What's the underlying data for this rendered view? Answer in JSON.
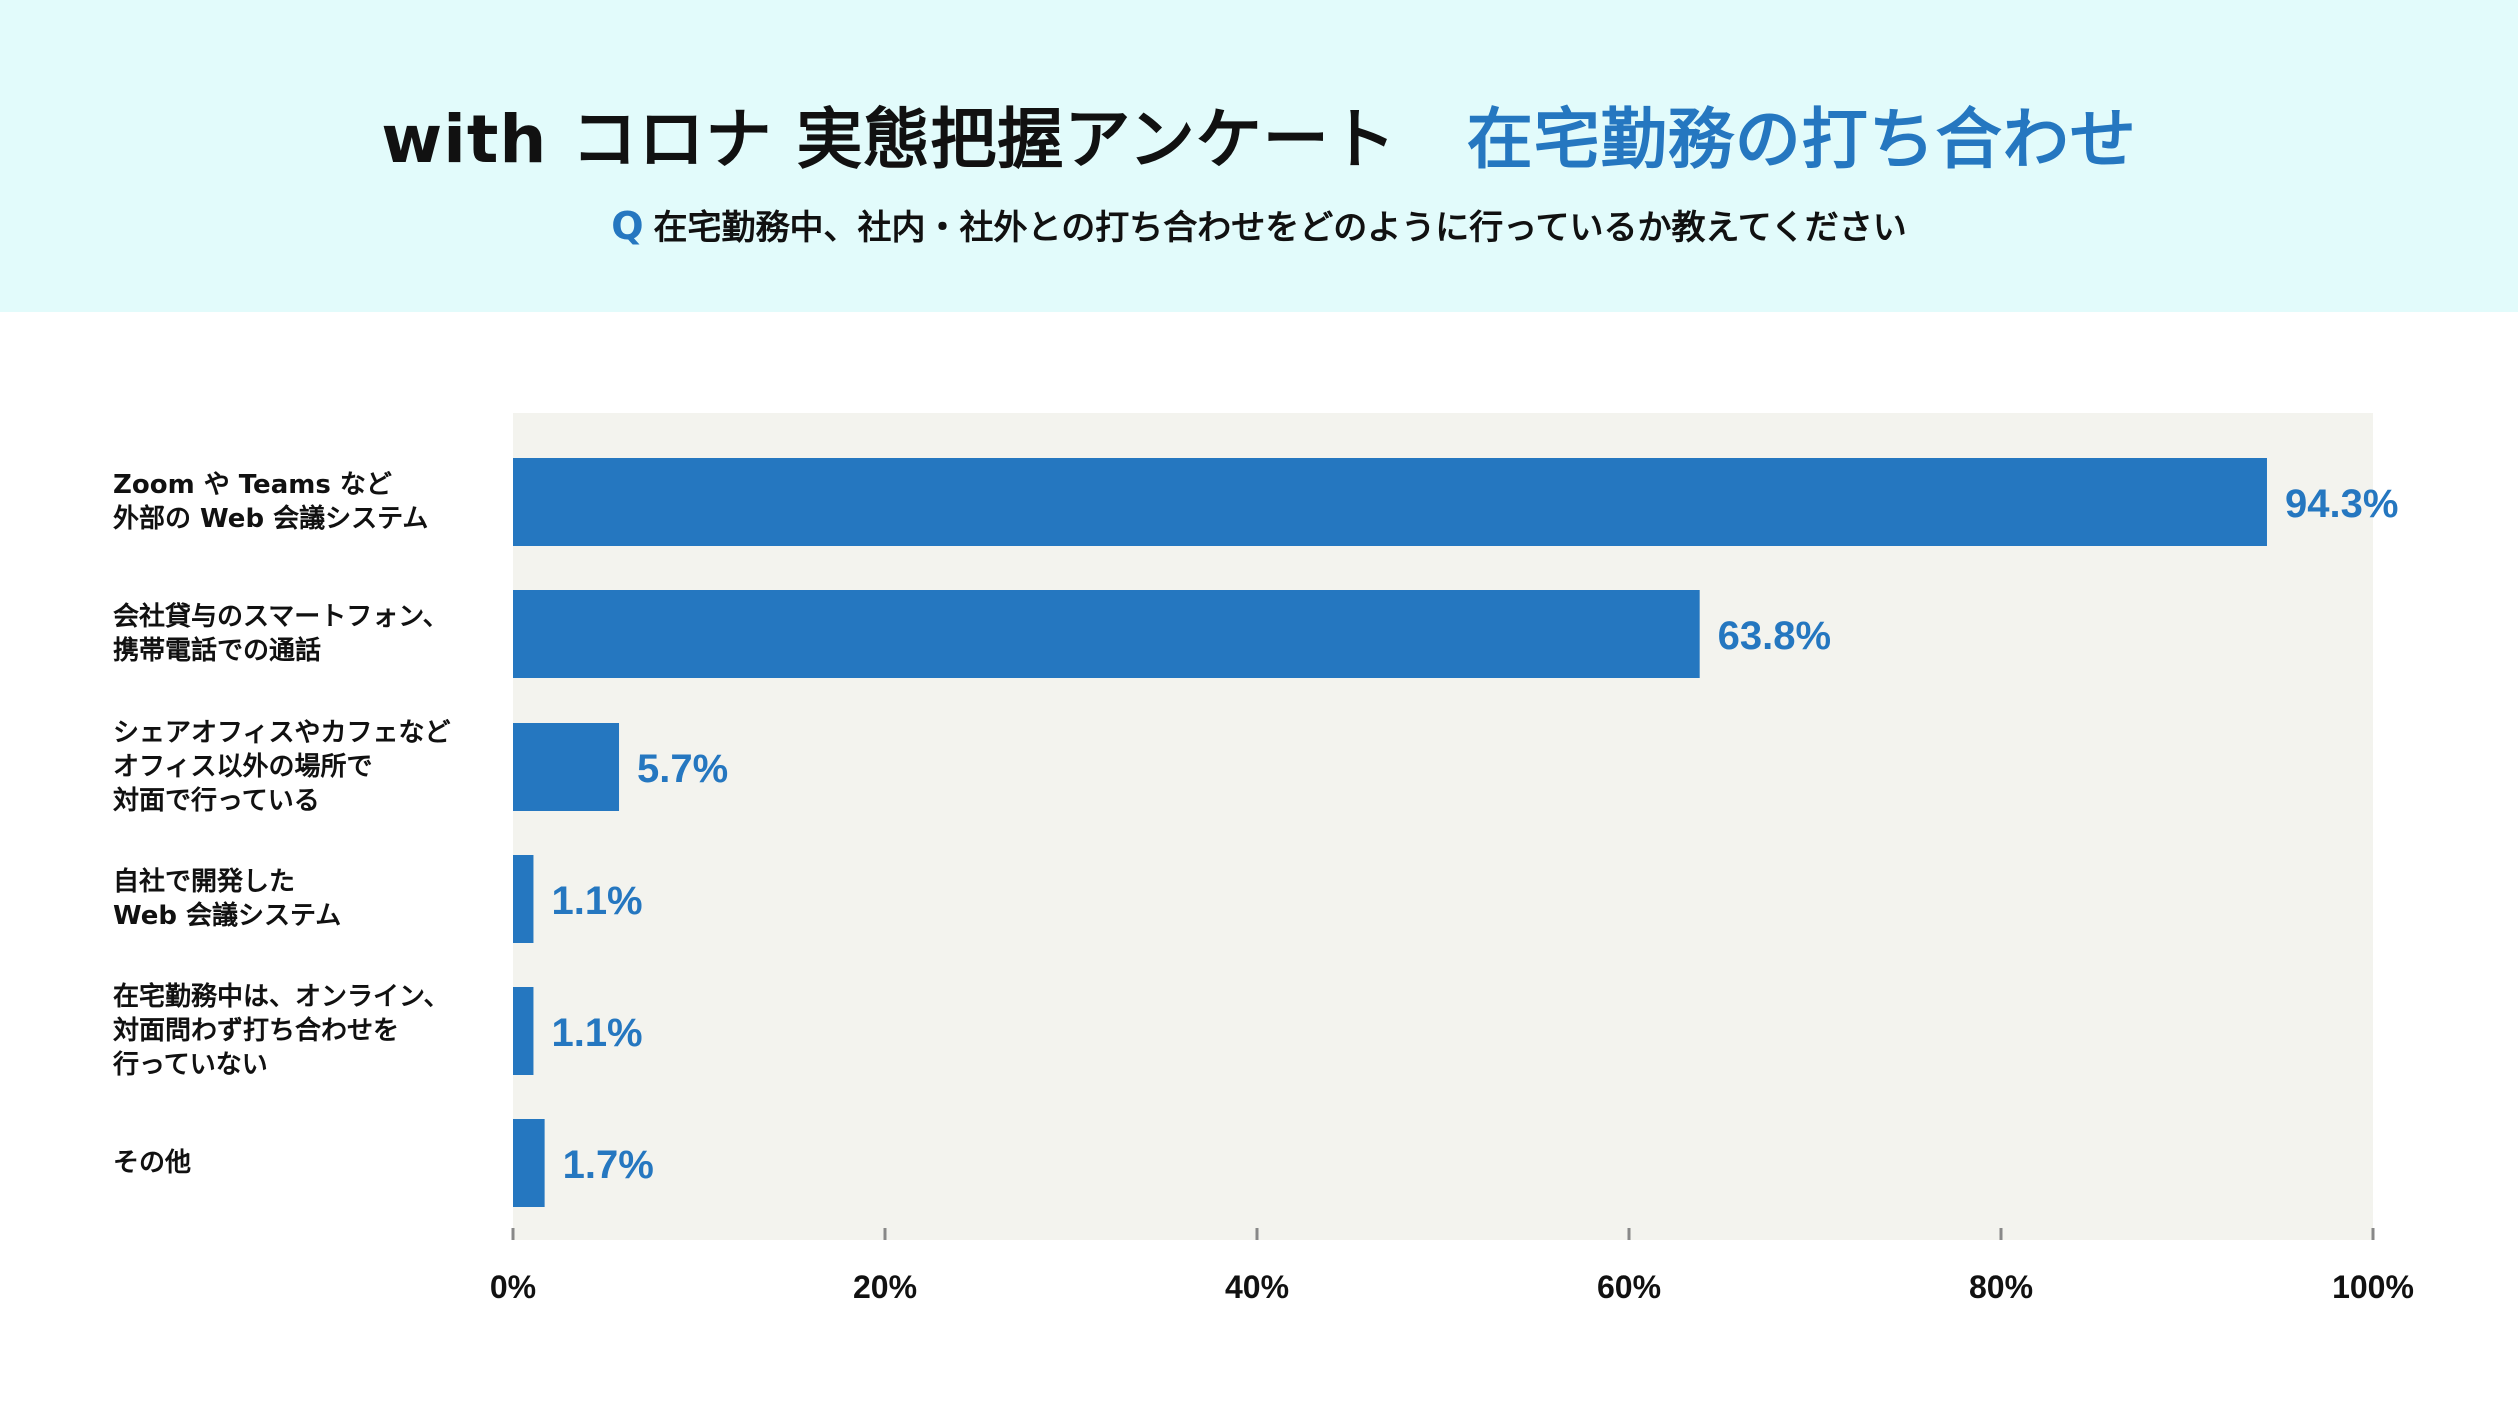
{
  "header": {
    "title_main": "with コロナ 実態把握アンケート",
    "title_sub": "在宅勤務の打ち合わせ",
    "question_mark": "Q",
    "question": "在宅勤務中、社内・社外との打ち合わせをどのように行っているか教えてください"
  },
  "colors": {
    "header_bg": "#e2fbfb",
    "plot_bg": "#f3f3ee",
    "bar": "#2577c0",
    "value_label": "#2577c0"
  },
  "chart_data": {
    "type": "bar",
    "orientation": "horizontal",
    "categories": [
      "Zoom や Teams など\n外部の Web 会議システム",
      "会社貸与のスマートフォン、\n携帯電話での通話",
      "シェアオフィスやカフェなど\nオフィス以外の場所で\n対面で行っている",
      "自社で開発した\nWeb 会議システム",
      "在宅勤務中は、オンライン、\n対面問わず打ち合わせを\n行っていない",
      "その他"
    ],
    "values": [
      94.3,
      63.8,
      5.7,
      1.1,
      1.1,
      1.7
    ],
    "value_labels": [
      "94.3%",
      "63.8%",
      "5.7%",
      "1.1%",
      "1.1%",
      "1.7%"
    ],
    "xlim": [
      0,
      100
    ],
    "xticks": [
      0,
      20,
      40,
      60,
      80,
      100
    ],
    "xtick_labels": [
      "0%",
      "20%",
      "40%",
      "60%",
      "80%",
      "100%"
    ],
    "grid": false
  }
}
